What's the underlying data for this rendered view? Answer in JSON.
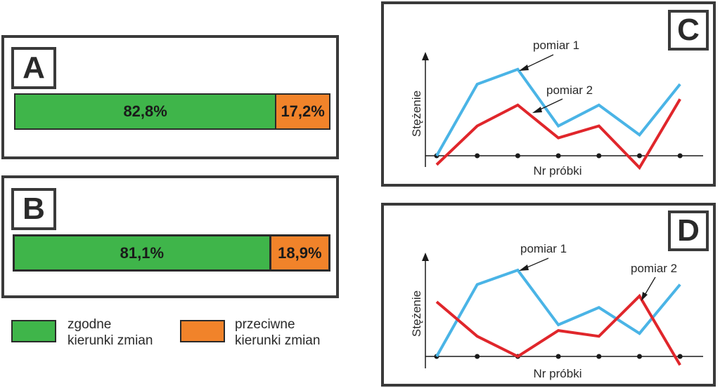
{
  "chart_data": [
    {
      "type": "bar",
      "panel_label": "A",
      "series": [
        {
          "name": "zgodne kierunki zmian",
          "value": 82.8,
          "label": "82,8%",
          "color": "#3fb54a"
        },
        {
          "name": "przeciwne kierunki zmian",
          "value": 17.2,
          "label": "17,2%",
          "color": "#f1832a"
        }
      ]
    },
    {
      "type": "bar",
      "panel_label": "B",
      "series": [
        {
          "name": "zgodne kierunki zmian",
          "value": 81.1,
          "label": "81,1%",
          "color": "#3fb54a"
        },
        {
          "name": "przeciwne kierunki zmian",
          "value": 18.9,
          "label": "18,9%",
          "color": "#f1832a"
        }
      ]
    },
    {
      "type": "line",
      "panel_label": "C",
      "xlabel": "Nr próbki",
      "ylabel": "Stężenie",
      "x": [
        0,
        1,
        2,
        3,
        4,
        5,
        6
      ],
      "series": [
        {
          "name": "pomiar 1",
          "color": "#4ab4e6",
          "values": [
            0.0,
            1.2,
            1.45,
            0.5,
            0.85,
            0.35,
            1.2
          ]
        },
        {
          "name": "pomiar 2",
          "color": "#e0262b",
          "values": [
            -0.15,
            0.5,
            0.85,
            0.3,
            0.5,
            -0.2,
            0.95
          ]
        }
      ]
    },
    {
      "type": "line",
      "panel_label": "D",
      "xlabel": "Nr próbki",
      "ylabel": "Stężenie",
      "x": [
        0,
        1,
        2,
        3,
        4,
        5,
        6
      ],
      "series": [
        {
          "name": "pomiar 1",
          "color": "#4ab4e6",
          "values": [
            0.0,
            1.25,
            1.5,
            0.55,
            0.85,
            0.4,
            1.25
          ]
        },
        {
          "name": "pomiar 2",
          "color": "#e0262b",
          "values": [
            0.95,
            0.35,
            0.0,
            0.45,
            0.35,
            1.05,
            -0.15
          ]
        }
      ]
    }
  ],
  "legend": {
    "green_line1": "zgodne",
    "green_line2": "kierunki zmian",
    "orange_line1": "przeciwne",
    "orange_line2": "kierunki zmian",
    "green_color": "#3fb54a",
    "orange_color": "#f1832a"
  }
}
